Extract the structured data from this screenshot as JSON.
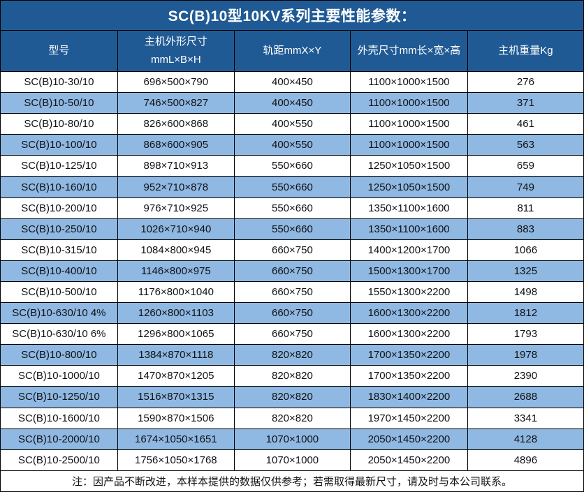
{
  "title": "SC(B)10型10KV系列主要性能参数：",
  "note": "注：因产品不断改进，本样本提供的数据仅供参考；若需取得最新尺寸，请及时与本公司联系。",
  "colors": {
    "header_bg": "#205A94",
    "row_stripe": "#8FB8E3",
    "border": "#000000",
    "header_text": "#FFFFFF",
    "body_text": "#111111"
  },
  "table": {
    "headers": [
      {
        "label": "型号"
      },
      {
        "label": "主机外形尺寸\nmmL×B×H"
      },
      {
        "label": "轨距mmX×Y"
      },
      {
        "label": "外壳尺寸mm长×宽×高"
      },
      {
        "label": "主机重量Kg"
      }
    ],
    "rows": [
      {
        "model": "SC(B)10-30/10",
        "host_size": "696×500×790",
        "rail_gauge": "400×450",
        "shell_size": "1100×1000×1500",
        "weight": "276"
      },
      {
        "model": "SC(B)10-50/10",
        "host_size": "746×500×827",
        "rail_gauge": "400×450",
        "shell_size": "1100×1000×1500",
        "weight": "371"
      },
      {
        "model": "SC(B)10-80/10",
        "host_size": "826×600×868",
        "rail_gauge": "400×550",
        "shell_size": "1100×1000×1500",
        "weight": "461"
      },
      {
        "model": "SC(B)10-100/10",
        "host_size": "868×600×905",
        "rail_gauge": "400×550",
        "shell_size": "1100×1000×1500",
        "weight": "563"
      },
      {
        "model": "SC(B)10-125/10",
        "host_size": "898×710×913",
        "rail_gauge": "550×660",
        "shell_size": "1250×1050×1500",
        "weight": "659"
      },
      {
        "model": "SC(B)10-160/10",
        "host_size": "952×710×878",
        "rail_gauge": "550×660",
        "shell_size": "1250×1050×1500",
        "weight": "749"
      },
      {
        "model": "SC(B)10-200/10",
        "host_size": "976×710×925",
        "rail_gauge": "550×660",
        "shell_size": "1350×1100×1600",
        "weight": "811"
      },
      {
        "model": "SC(B)10-250/10",
        "host_size": "1026×710×940",
        "rail_gauge": "550×660",
        "shell_size": "1350×1100×1600",
        "weight": "883"
      },
      {
        "model": "SC(B)10-315/10",
        "host_size": "1084×800×945",
        "rail_gauge": "660×750",
        "shell_size": "1400×1200×1700",
        "weight": "1066"
      },
      {
        "model": "SC(B)10-400/10",
        "host_size": "1146×800×975",
        "rail_gauge": "660×750",
        "shell_size": "1500×1300×1700",
        "weight": "1325"
      },
      {
        "model": "SC(B)10-500/10",
        "host_size": "1176×800×1040",
        "rail_gauge": "660×750",
        "shell_size": "1550×1300×2200",
        "weight": "1498"
      },
      {
        "model": "SC(B)10-630/10 4%",
        "host_size": "1260×800×1103",
        "rail_gauge": "660×750",
        "shell_size": "1600×1300×2200",
        "weight": "1812"
      },
      {
        "model": "SC(B)10-630/10 6%",
        "host_size": "1296×800×1065",
        "rail_gauge": "660×750",
        "shell_size": "1600×1300×2200",
        "weight": "1793"
      },
      {
        "model": "SC(B)10-800/10",
        "host_size": "1384×870×1118",
        "rail_gauge": "820×820",
        "shell_size": "1700×1350×2200",
        "weight": "1978"
      },
      {
        "model": "SC(B)10-1000/10",
        "host_size": "1470×870×1205",
        "rail_gauge": "820×820",
        "shell_size": "1700×1350×2200",
        "weight": "2390"
      },
      {
        "model": "SC(B)10-1250/10",
        "host_size": "1516×870×1315",
        "rail_gauge": "820×820",
        "shell_size": "1830×1400×2200",
        "weight": "2688"
      },
      {
        "model": "SC(B)10-1600/10",
        "host_size": "1590×870×1506",
        "rail_gauge": "820×820",
        "shell_size": "1970×1450×2200",
        "weight": "3341"
      },
      {
        "model": "SC(B)10-2000/10",
        "host_size": "1674×1050×1651",
        "rail_gauge": "1070×1000",
        "shell_size": "2050×1450×2200",
        "weight": "4128"
      },
      {
        "model": "SC(B)10-2500/10",
        "host_size": "1756×1050×1768",
        "rail_gauge": "1070×1000",
        "shell_size": "2050×1450×2200",
        "weight": "4896"
      }
    ]
  }
}
